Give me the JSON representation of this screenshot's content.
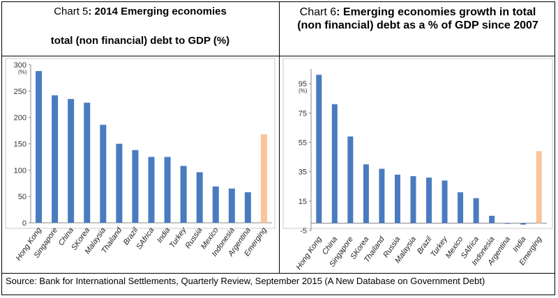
{
  "colors": {
    "bar": "#4a7bbf",
    "highlight": "#f9c49a"
  },
  "titles": {
    "chart5_prefix": "Chart 5",
    "chart5_line1": ": 2014 Emerging economies",
    "chart5_line2": "total (non financial) debt to GDP (%)",
    "chart6_prefix": "Chart 6",
    "chart6_line1": ": Emerging economies growth in total",
    "chart6_line2": "(non financial) debt as a % of GDP since 2007"
  },
  "source": "Source: Bank for International Settlements, Quarterly Review, September 2015 (A New Database on Government Debt)",
  "chart_data": [
    {
      "type": "bar",
      "title": "Chart 5: 2014 Emerging economies total (non financial) debt to GDP (%)",
      "unit_label": "(%)",
      "categories": [
        "Hong Kong",
        "Singapore",
        "China",
        "SKorea",
        "Malaysia",
        "Thailand",
        "Brazil",
        "SAfrica",
        "India",
        "Turkey",
        "Russia",
        "Mexico",
        "Indonesia",
        "Argentina",
        "Emerging"
      ],
      "values": [
        288,
        242,
        235,
        228,
        186,
        150,
        138,
        125,
        125,
        108,
        96,
        69,
        65,
        58,
        168
      ],
      "highlight_index": 14,
      "ylim": [
        0,
        300
      ],
      "yticks": [
        0,
        50,
        100,
        150,
        200,
        250,
        300
      ],
      "grid": false
    },
    {
      "type": "bar",
      "title": "Chart 6: Emerging economies growth in total (non financial) debt as a % of GDP since 2007",
      "unit_label": "(%)",
      "categories": [
        "Hong Kong",
        "China",
        "Singapore",
        "SKorea",
        "Thailand",
        "Russia",
        "Malaysia",
        "Brazil",
        "Turkey",
        "Mexico",
        "SAfrica",
        "Indonesia",
        "Argentina",
        "India",
        "Emerging"
      ],
      "values": [
        101,
        81,
        59,
        40,
        37,
        33,
        32,
        31,
        29,
        21,
        17,
        5,
        -0.3,
        -1,
        49
      ],
      "highlight_index": 14,
      "ylim": [
        -5,
        105
      ],
      "yticks": [
        -5,
        15,
        35,
        55,
        75,
        95
      ],
      "grid": false
    }
  ]
}
